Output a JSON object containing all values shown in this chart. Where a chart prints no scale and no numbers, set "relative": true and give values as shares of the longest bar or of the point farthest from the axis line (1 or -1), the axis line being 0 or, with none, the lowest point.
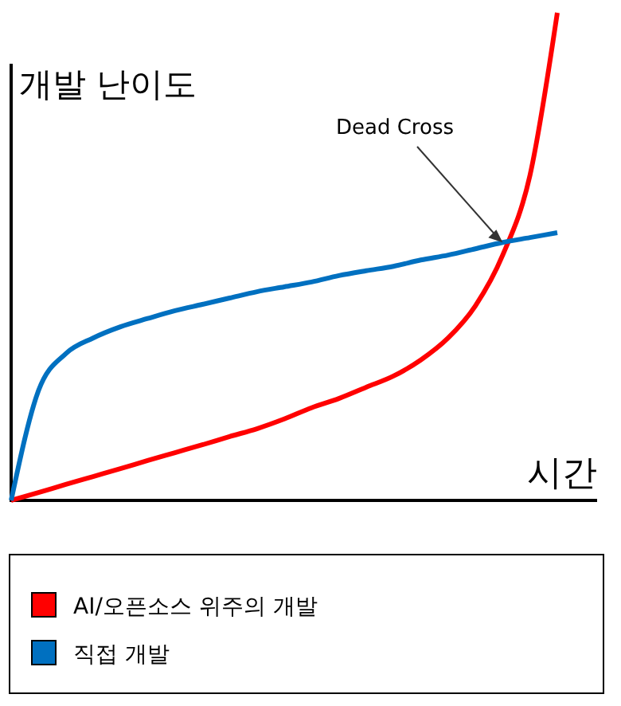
{
  "chart_data": {
    "type": "line",
    "relative": true,
    "xlabel": "시간",
    "ylabel": "개발 난이도",
    "categories": [
      null,
      null,
      null,
      null,
      null,
      null,
      null,
      null,
      null,
      null,
      null,
      null,
      null,
      null,
      null,
      null,
      null,
      null,
      null,
      null,
      null
    ],
    "series": [
      {
        "name": "AI/오픈소스 위주의 개발",
        "color": "#ff0000",
        "values": [
          0,
          0.016,
          0.033,
          0.049,
          0.065,
          0.082,
          0.098,
          0.114,
          0.131,
          0.147,
          0.167,
          0.19,
          0.209,
          0.232,
          0.255,
          0.288,
          0.333,
          0.399,
          0.503,
          0.667,
          1
        ]
      },
      {
        "name": "직접 개발",
        "color": "#0070c0",
        "values": [
          0,
          0.225,
          0.301,
          0.333,
          0.356,
          0.373,
          0.389,
          0.402,
          0.415,
          0.428,
          0.438,
          0.448,
          0.461,
          0.471,
          0.48,
          0.493,
          0.503,
          0.516,
          0.529,
          0.539,
          0.549
        ]
      }
    ],
    "annotations": [
      "Dead Cross"
    ],
    "legend": "bottom",
    "marker": "none",
    "line_style": "solid"
  }
}
